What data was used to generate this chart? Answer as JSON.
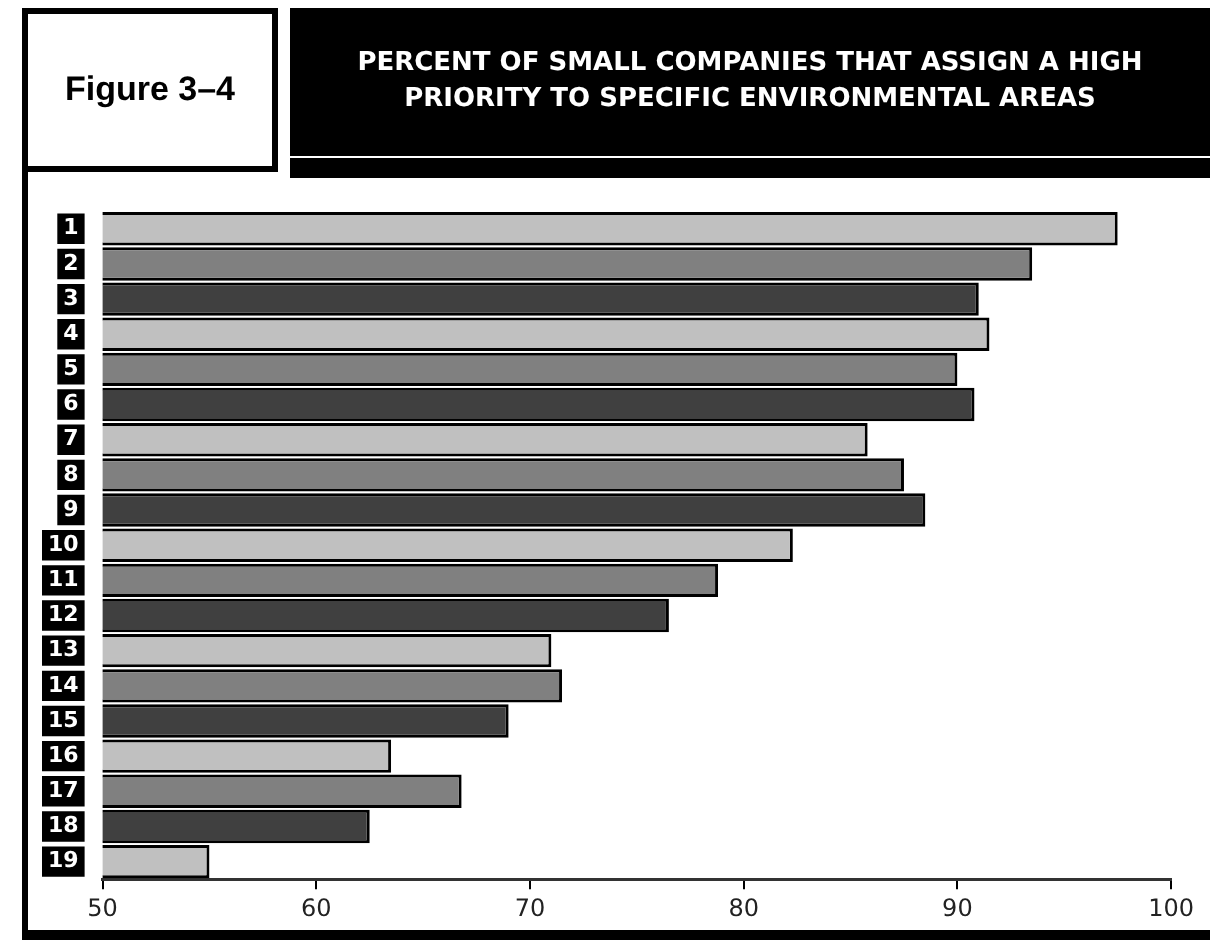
{
  "chart_data": {
    "type": "bar",
    "orientation": "horizontal",
    "title": "PERCENT OF SMALL COMPANIES THAT ASSIGN A HIGH PRIORITY TO SPECIFIC ENVIRONMENTAL AREAS",
    "annotations": [
      "Figure 3–4"
    ],
    "categories": [
      "1",
      "2",
      "3",
      "4",
      "5",
      "6",
      "7",
      "8",
      "9",
      "10",
      "11",
      "12",
      "13",
      "14",
      "15",
      "16",
      "17",
      "18",
      "19"
    ],
    "values": [
      97.5,
      93.5,
      91.0,
      91.5,
      90.0,
      90.8,
      85.8,
      87.5,
      88.5,
      82.3,
      78.8,
      76.5,
      71.0,
      71.5,
      69.0,
      63.5,
      66.8,
      62.5,
      55.0
    ],
    "colors": [
      "#c0c0c0",
      "#808080",
      "#404040",
      "#c0c0c0",
      "#808080",
      "#404040",
      "#c0c0c0",
      "#808080",
      "#404040",
      "#c0c0c0",
      "#808080",
      "#404040",
      "#c0c0c0",
      "#808080",
      "#404040",
      "#c0c0c0",
      "#808080",
      "#404040",
      "#c0c0c0"
    ],
    "xlim": [
      50,
      100
    ],
    "xticks": [
      50,
      60,
      70,
      80,
      90,
      100
    ],
    "grid": false,
    "legend": false
  }
}
